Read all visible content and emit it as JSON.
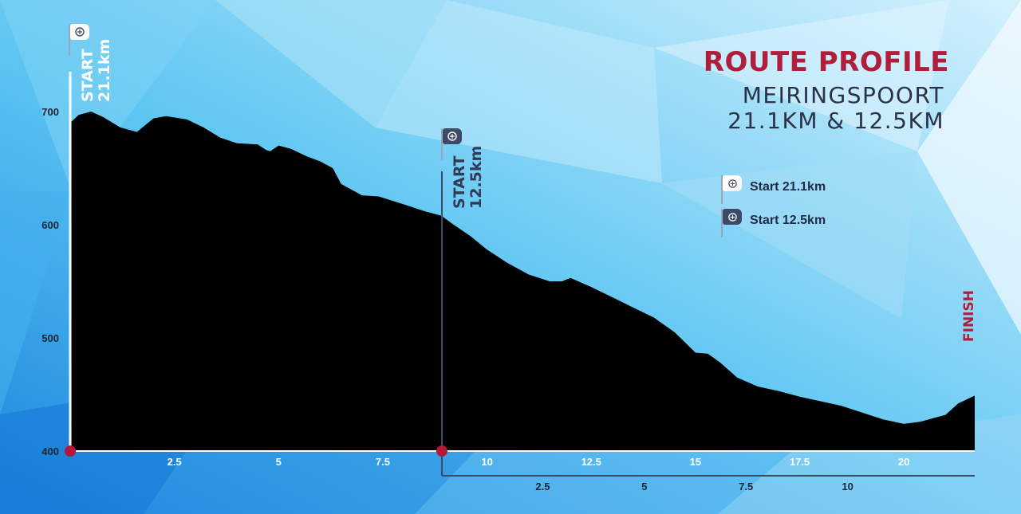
{
  "title": "ROUTE PROFILE",
  "subtitle_line1": "MEIRINGSPOORT",
  "subtitle_line2": "21.1KM & 12.5KM",
  "start_21_label_line1": "START",
  "start_21_label_line2": "21.1km",
  "start_12_label_line1": "START",
  "start_12_label_line2": "12.5km",
  "finish_label": "FINISH",
  "legend": [
    {
      "label": "Start 21.1km",
      "flag_color": "#ffffff",
      "icon": "white-flag-icon"
    },
    {
      "label": "Start 12.5km",
      "flag_color": "#3c4a66",
      "icon": "navy-flag-icon"
    }
  ],
  "colors": {
    "title": "#b01e3c",
    "subtitle": "#2b3147",
    "profile_fill": "#000000",
    "finish": "#b01e3c",
    "marker_dot": "#b5173a",
    "start_12_line": "#3c4a66",
    "start_21_line": "#ffffff",
    "background_light": "#c8ecfb",
    "background_mid": "#5fc3f0",
    "background_dark": "#1f8fe0"
  },
  "chart_data": {
    "type": "area",
    "title": "ROUTE PROFILE",
    "xlabel": "",
    "ylabel": "",
    "xlim": [
      0,
      21.7
    ],
    "ylim": [
      400,
      700
    ],
    "y_ticks": [
      400,
      500,
      600,
      700
    ],
    "x_ticks_21km": [
      {
        "value": 2.5,
        "label": "2.5"
      },
      {
        "value": 5,
        "label": "5"
      },
      {
        "value": 7.5,
        "label": "7.5"
      },
      {
        "value": 10,
        "label": "10"
      },
      {
        "value": 12.5,
        "label": "12.5"
      },
      {
        "value": 15,
        "label": "15"
      },
      {
        "value": 17.5,
        "label": "17.5"
      },
      {
        "value": 20,
        "label": "20"
      }
    ],
    "x_ticks_12km": [
      {
        "value": 2.5,
        "label": "2.5"
      },
      {
        "value": 5,
        "label": "5"
      },
      {
        "value": 7.5,
        "label": "7.5"
      },
      {
        "value": 10,
        "label": "10"
      }
    ],
    "start_12km_offset_km": 8.9,
    "grid": false,
    "legend_position": "top-right",
    "series": [
      {
        "x": [
          0,
          0.2,
          0.5,
          0.8,
          1.2,
          1.6,
          1.8,
          2.0,
          2.3,
          2.8,
          3.2,
          3.6,
          4.0,
          4.5,
          4.7,
          4.8,
          5.0,
          5.3,
          5.7,
          6.0,
          6.3,
          6.5,
          7.0,
          7.4,
          8.0,
          8.5,
          8.9,
          9.2,
          9.6,
          10.0,
          10.5,
          11.0,
          11.5,
          11.8,
          12.0,
          12.5,
          13.0,
          13.5,
          14.0,
          14.5,
          15.0,
          15.3,
          15.6,
          16.0,
          16.5,
          17.0,
          17.5,
          18.0,
          18.5,
          19.0,
          19.5,
          20.0,
          20.4,
          20.8,
          21.0,
          21.3,
          21.7
        ],
        "y": [
          690,
          697,
          700,
          695,
          686,
          682,
          688,
          694,
          696,
          693,
          686,
          677,
          672,
          671,
          666,
          665,
          670,
          667,
          660,
          656,
          650,
          636,
          626,
          625,
          618,
          612,
          608,
          600,
          590,
          578,
          566,
          556,
          550,
          550,
          553,
          545,
          536,
          527,
          518,
          505,
          487,
          486,
          478,
          465,
          457,
          453,
          448,
          444,
          440,
          434,
          428,
          424,
          426,
          430,
          432,
          442,
          449
        ]
      }
    ]
  }
}
